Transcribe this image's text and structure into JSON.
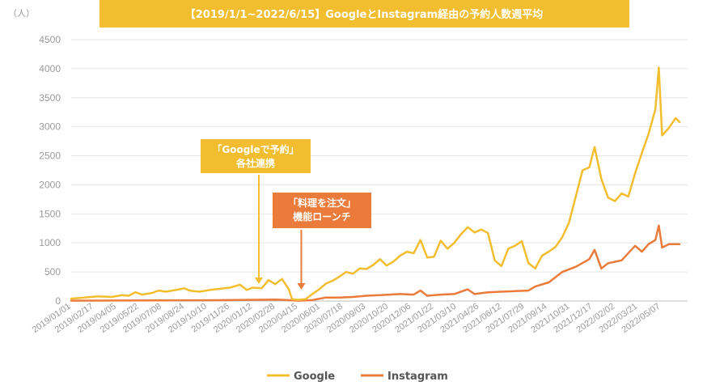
{
  "chart_data": {
    "type": "line",
    "title": "【2019/1/1~2022/6/15】GoogleとInstagram経由の予約人数週平均",
    "yunit": "（人）",
    "ylim": [
      0,
      4500
    ],
    "yticks": [
      "0",
      "500",
      "1000",
      "1500",
      "2000",
      "2500",
      "3000",
      "3500",
      "4000",
      "4500"
    ],
    "xlim": [
      "2019-01-01",
      "2022-06-15"
    ],
    "xticks": [
      "2019/01/01",
      "2019/02/17",
      "2019/04/05",
      "2019/05/22",
      "2019/07/08",
      "2019/08/24",
      "2019/10/10",
      "2019/11/26",
      "2020/01/12",
      "2020/02/28",
      "2020/04/15",
      "2020/06/01",
      "2020/07/18",
      "2020/09/03",
      "2020/10/20",
      "2020/12/06",
      "2021/01/22",
      "2021/03/10",
      "2021/04/26",
      "2021/06/12",
      "2021/07/29",
      "2021/09/14",
      "2021/10/31",
      "2021/12/17",
      "2022/02/02",
      "2022/03/21",
      "2022/05/07"
    ],
    "grid": true,
    "legend_position": "bottom",
    "series": [
      {
        "name": "Google",
        "color": "#F2BE2F",
        "points": [
          [
            "2019-01-01",
            40
          ],
          [
            "2019-01-29",
            60
          ],
          [
            "2019-02-26",
            80
          ],
          [
            "2019-03-26",
            70
          ],
          [
            "2019-04-16",
            100
          ],
          [
            "2019-04-30",
            90
          ],
          [
            "2019-05-14",
            150
          ],
          [
            "2019-05-28",
            110
          ],
          [
            "2019-06-18",
            140
          ],
          [
            "2019-07-02",
            180
          ],
          [
            "2019-07-16",
            160
          ],
          [
            "2019-08-06",
            190
          ],
          [
            "2019-08-24",
            220
          ],
          [
            "2019-09-03",
            180
          ],
          [
            "2019-09-24",
            160
          ],
          [
            "2019-10-15",
            190
          ],
          [
            "2019-11-05",
            210
          ],
          [
            "2019-11-26",
            230
          ],
          [
            "2019-12-17",
            280
          ],
          [
            "2019-12-31",
            190
          ],
          [
            "2020-01-12",
            230
          ],
          [
            "2020-01-31",
            220
          ],
          [
            "2020-02-14",
            360
          ],
          [
            "2020-02-28",
            290
          ],
          [
            "2020-03-13",
            380
          ],
          [
            "2020-03-27",
            200
          ],
          [
            "2020-04-03",
            30
          ],
          [
            "2020-04-15",
            20
          ],
          [
            "2020-05-01",
            30
          ],
          [
            "2020-05-15",
            120
          ],
          [
            "2020-05-29",
            200
          ],
          [
            "2020-06-12",
            300
          ],
          [
            "2020-06-26",
            350
          ],
          [
            "2020-07-10",
            420
          ],
          [
            "2020-07-24",
            500
          ],
          [
            "2020-08-07",
            470
          ],
          [
            "2020-08-21",
            560
          ],
          [
            "2020-09-04",
            550
          ],
          [
            "2020-09-18",
            620
          ],
          [
            "2020-10-02",
            720
          ],
          [
            "2020-10-16",
            610
          ],
          [
            "2020-10-30",
            680
          ],
          [
            "2020-11-13",
            780
          ],
          [
            "2020-11-27",
            850
          ],
          [
            "2020-12-11",
            820
          ],
          [
            "2020-12-25",
            1050
          ],
          [
            "2021-01-08",
            750
          ],
          [
            "2021-01-22",
            760
          ],
          [
            "2021-02-05",
            1040
          ],
          [
            "2021-02-19",
            900
          ],
          [
            "2021-03-05",
            1000
          ],
          [
            "2021-03-19",
            1150
          ],
          [
            "2021-04-02",
            1270
          ],
          [
            "2021-04-16",
            1180
          ],
          [
            "2021-04-30",
            1230
          ],
          [
            "2021-05-14",
            1170
          ],
          [
            "2021-05-28",
            700
          ],
          [
            "2021-06-11",
            600
          ],
          [
            "2021-06-25",
            900
          ],
          [
            "2021-07-09",
            950
          ],
          [
            "2021-07-23",
            1030
          ],
          [
            "2021-08-06",
            650
          ],
          [
            "2021-08-20",
            560
          ],
          [
            "2021-09-03",
            780
          ],
          [
            "2021-09-17",
            850
          ],
          [
            "2021-10-01",
            930
          ],
          [
            "2021-10-15",
            1100
          ],
          [
            "2021-10-29",
            1350
          ],
          [
            "2021-11-12",
            1800
          ],
          [
            "2021-11-26",
            2250
          ],
          [
            "2021-12-10",
            2300
          ],
          [
            "2021-12-21",
            2650
          ],
          [
            "2022-01-04",
            2100
          ],
          [
            "2022-01-18",
            1780
          ],
          [
            "2022-02-01",
            1720
          ],
          [
            "2022-02-15",
            1850
          ],
          [
            "2022-03-01",
            1800
          ],
          [
            "2022-03-15",
            2200
          ],
          [
            "2022-03-29",
            2550
          ],
          [
            "2022-04-12",
            2880
          ],
          [
            "2022-04-26",
            3300
          ],
          [
            "2022-05-03",
            4020
          ],
          [
            "2022-05-10",
            2850
          ],
          [
            "2022-05-24",
            2980
          ],
          [
            "2022-06-07",
            3150
          ],
          [
            "2022-06-15",
            3080
          ]
        ]
      },
      {
        "name": "Instagram",
        "color": "#EB7B3A",
        "points": [
          [
            "2019-01-01",
            5
          ],
          [
            "2019-04-01",
            8
          ],
          [
            "2019-07-01",
            10
          ],
          [
            "2019-10-01",
            12
          ],
          [
            "2020-01-01",
            20
          ],
          [
            "2020-02-28",
            25
          ],
          [
            "2020-03-27",
            15
          ],
          [
            "2020-04-15",
            5
          ],
          [
            "2020-05-15",
            15
          ],
          [
            "2020-06-12",
            60
          ],
          [
            "2020-07-10",
            60
          ],
          [
            "2020-08-07",
            70
          ],
          [
            "2020-09-04",
            90
          ],
          [
            "2020-10-02",
            100
          ],
          [
            "2020-11-13",
            120
          ],
          [
            "2020-12-11",
            110
          ],
          [
            "2020-12-25",
            180
          ],
          [
            "2021-01-08",
            90
          ],
          [
            "2021-02-05",
            110
          ],
          [
            "2021-03-05",
            120
          ],
          [
            "2021-04-02",
            200
          ],
          [
            "2021-04-16",
            120
          ],
          [
            "2021-05-14",
            150
          ],
          [
            "2021-06-11",
            160
          ],
          [
            "2021-07-09",
            170
          ],
          [
            "2021-08-06",
            180
          ],
          [
            "2021-08-20",
            250
          ],
          [
            "2021-09-17",
            320
          ],
          [
            "2021-10-15",
            500
          ],
          [
            "2021-11-12",
            590
          ],
          [
            "2021-12-10",
            720
          ],
          [
            "2021-12-21",
            880
          ],
          [
            "2022-01-04",
            560
          ],
          [
            "2022-01-18",
            650
          ],
          [
            "2022-02-15",
            700
          ],
          [
            "2022-03-15",
            950
          ],
          [
            "2022-03-29",
            850
          ],
          [
            "2022-04-12",
            980
          ],
          [
            "2022-04-26",
            1050
          ],
          [
            "2022-05-03",
            1300
          ],
          [
            "2022-05-10",
            920
          ],
          [
            "2022-05-24",
            980
          ],
          [
            "2022-06-15",
            980
          ]
        ]
      }
    ],
    "annotations": [
      {
        "lines": [
          "「Googleで予約」",
          "各社連携"
        ],
        "date": "2020-01-25",
        "color": "#F2BE2F"
      },
      {
        "lines": [
          "「料理を注文」",
          "機能ローンチ"
        ],
        "date": "2020-04-22",
        "color": "#EB7B3A"
      }
    ]
  }
}
